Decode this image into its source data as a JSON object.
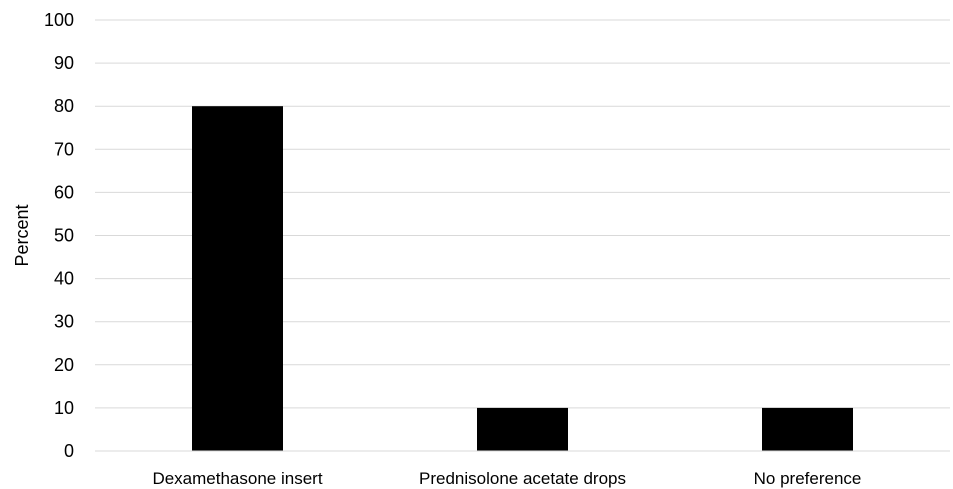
{
  "chart_data": {
    "type": "bar",
    "title": "",
    "xlabel": "",
    "ylabel": "Percent",
    "categories": [
      "Dexamethasone insert",
      "Prednisolone acetate drops",
      "No preference"
    ],
    "values": [
      80,
      10,
      10
    ],
    "ylim": [
      0,
      100
    ],
    "yticks": [
      "0",
      "10",
      "20",
      "30",
      "40",
      "50",
      "60",
      "70",
      "80",
      "90",
      "100"
    ],
    "grid": true,
    "legend": "none",
    "bar_color": "#000000",
    "grid_color": "#d9d9d9"
  }
}
